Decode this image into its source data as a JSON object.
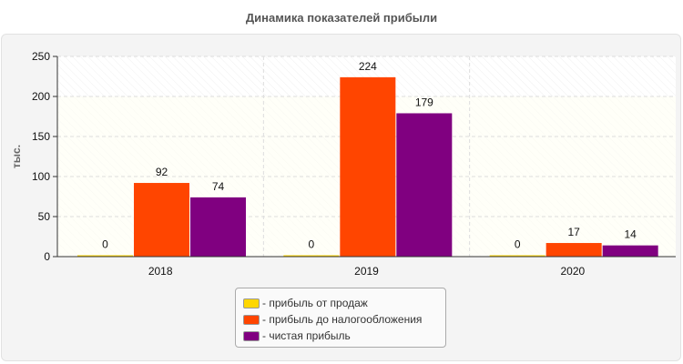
{
  "chart_data": {
    "type": "bar",
    "title": "Динамика показателей прибыли",
    "ylabel": "тыс.",
    "xlabel": "",
    "categories": [
      "2018",
      "2019",
      "2020"
    ],
    "ylim": [
      0,
      250
    ],
    "yticks": [
      0,
      50,
      100,
      150,
      200,
      250
    ],
    "grid": true,
    "legend_placement": "bottom",
    "series": [
      {
        "name": "- прибыль от продаж",
        "color": "#ffd700",
        "values": [
          0,
          0,
          0
        ]
      },
      {
        "name": "- прибыль до налогообложения",
        "color": "#ff4500",
        "values": [
          92,
          224,
          17
        ]
      },
      {
        "name": "- чистая прибыль",
        "color": "#800080",
        "values": [
          74,
          179,
          14
        ]
      }
    ]
  }
}
